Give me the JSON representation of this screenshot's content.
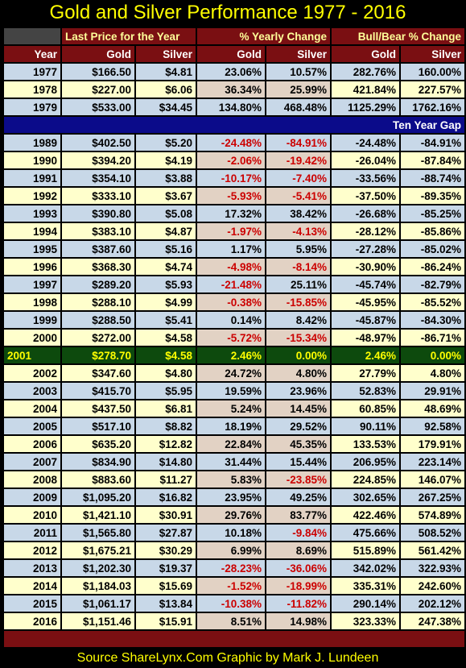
{
  "title": "Gold and Silver Performance 1977 - 2016",
  "source": "Source ShareLynx.Com  Graphic by Mark J. Lundeen",
  "header": {
    "group_price": "Last Price for the Year",
    "group_yearly": "% Yearly Change",
    "group_bullbear": "Bull/Bear % Change",
    "col_year": "Year",
    "col_gold": "Gold",
    "col_silver": "Silver"
  },
  "gap_label": "Ten Year Gap",
  "chart_data": {
    "type": "table",
    "title": "Gold and Silver Performance 1977 - 2016",
    "columns": [
      "Year",
      "Gold Last Price",
      "Silver Last Price",
      "Gold % Yearly Change",
      "Silver % Yearly Change",
      "Gold Bull/Bear % Change",
      "Silver Bull/Bear % Change"
    ],
    "rows": [
      [
        "1977",
        "$166.50",
        "$4.81",
        "23.06%",
        "10.57%",
        "282.76%",
        "160.00%"
      ],
      [
        "1978",
        "$227.00",
        "$6.06",
        "36.34%",
        "25.99%",
        "421.84%",
        "227.57%"
      ],
      [
        "1979",
        "$533.00",
        "$34.45",
        "134.80%",
        "468.48%",
        "1125.29%",
        "1762.16%"
      ],
      [
        "1989",
        "$402.50",
        "$5.20",
        "-24.48%",
        "-84.91%",
        "-24.48%",
        "-84.91%"
      ],
      [
        "1990",
        "$394.20",
        "$4.19",
        "-2.06%",
        "-19.42%",
        "-26.04%",
        "-87.84%"
      ],
      [
        "1991",
        "$354.10",
        "$3.88",
        "-10.17%",
        "-7.40%",
        "-33.56%",
        "-88.74%"
      ],
      [
        "1992",
        "$333.10",
        "$3.67",
        "-5.93%",
        "-5.41%",
        "-37.50%",
        "-89.35%"
      ],
      [
        "1993",
        "$390.80",
        "$5.08",
        "17.32%",
        "38.42%",
        "-26.68%",
        "-85.25%"
      ],
      [
        "1994",
        "$383.10",
        "$4.87",
        "-1.97%",
        "-4.13%",
        "-28.12%",
        "-85.86%"
      ],
      [
        "1995",
        "$387.60",
        "$5.16",
        "1.17%",
        "5.95%",
        "-27.28%",
        "-85.02%"
      ],
      [
        "1996",
        "$368.30",
        "$4.74",
        "-4.98%",
        "-8.14%",
        "-30.90%",
        "-86.24%"
      ],
      [
        "1997",
        "$289.20",
        "$5.93",
        "-21.48%",
        "25.11%",
        "-45.74%",
        "-82.79%"
      ],
      [
        "1998",
        "$288.10",
        "$4.99",
        "-0.38%",
        "-15.85%",
        "-45.95%",
        "-85.52%"
      ],
      [
        "1999",
        "$288.50",
        "$5.41",
        "0.14%",
        "8.42%",
        "-45.87%",
        "-84.30%"
      ],
      [
        "2000",
        "$272.00",
        "$4.58",
        "-5.72%",
        "-15.34%",
        "-48.97%",
        "-86.71%"
      ],
      [
        "2001",
        "$278.70",
        "$4.58",
        "2.46%",
        "0.00%",
        "2.46%",
        "0.00%"
      ],
      [
        "2002",
        "$347.60",
        "$4.80",
        "24.72%",
        "4.80%",
        "27.79%",
        "4.80%"
      ],
      [
        "2003",
        "$415.70",
        "$5.95",
        "19.59%",
        "23.96%",
        "52.83%",
        "29.91%"
      ],
      [
        "2004",
        "$437.50",
        "$6.81",
        "5.24%",
        "14.45%",
        "60.85%",
        "48.69%"
      ],
      [
        "2005",
        "$517.10",
        "$8.82",
        "18.19%",
        "29.52%",
        "90.11%",
        "92.58%"
      ],
      [
        "2006",
        "$635.20",
        "$12.82",
        "22.84%",
        "45.35%",
        "133.53%",
        "179.91%"
      ],
      [
        "2007",
        "$834.90",
        "$14.80",
        "31.44%",
        "15.44%",
        "206.95%",
        "223.14%"
      ],
      [
        "2008",
        "$883.60",
        "$11.27",
        "5.83%",
        "-23.85%",
        "224.85%",
        "146.07%"
      ],
      [
        "2009",
        "$1,095.20",
        "$16.82",
        "23.95%",
        "49.25%",
        "302.65%",
        "267.25%"
      ],
      [
        "2010",
        "$1,421.10",
        "$30.91",
        "29.76%",
        "83.77%",
        "422.46%",
        "574.89%"
      ],
      [
        "2011",
        "$1,565.80",
        "$27.87",
        "10.18%",
        "-9.84%",
        "475.66%",
        "508.52%"
      ],
      [
        "2012",
        "$1,675.21",
        "$30.29",
        "6.99%",
        "8.69%",
        "515.89%",
        "561.42%"
      ],
      [
        "2013",
        "$1,202.30",
        "$19.37",
        "-28.23%",
        "-36.06%",
        "342.02%",
        "322.93%"
      ],
      [
        "2014",
        "$1,184.03",
        "$15.69",
        "-1.52%",
        "-18.99%",
        "335.31%",
        "242.60%"
      ],
      [
        "2015",
        "$1,061.17",
        "$13.84",
        "-10.38%",
        "-11.82%",
        "290.14%",
        "202.12%"
      ],
      [
        "2016",
        "$1,151.46",
        "$15.91",
        "8.51%",
        "14.98%",
        "323.33%",
        "247.38%"
      ]
    ],
    "gap_after_row": "1979",
    "highlight_row": "2001",
    "colors": {
      "title": "#ffff00",
      "header_bg": "#7a0f12",
      "gap_bg": "#0b0b8a",
      "highlight_bg": "#0d4a0d",
      "negative_text": "#cc0000"
    }
  }
}
